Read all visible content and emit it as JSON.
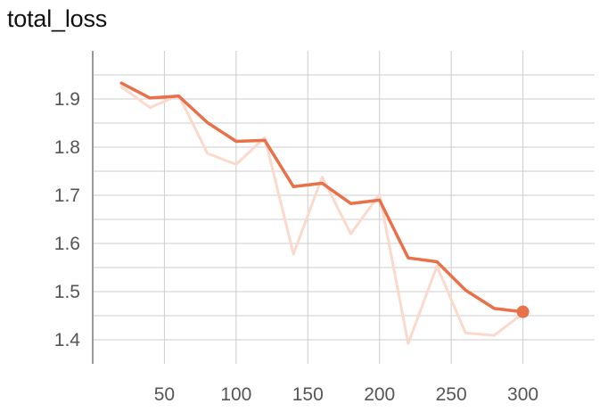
{
  "chart_data": {
    "type": "line",
    "title": "total_loss",
    "xlabel": "",
    "ylabel": "",
    "xlim": [
      0,
      350
    ],
    "ylim": [
      1.35,
      2.0
    ],
    "xticks": [
      50,
      100,
      150,
      200,
      250,
      300
    ],
    "yticks": [
      1.4,
      1.5,
      1.6,
      1.7,
      1.8,
      1.9
    ],
    "grid": true,
    "colors": {
      "smoothed": "#e8714a",
      "raw": "#fbd9cd",
      "grid": "#cccccc",
      "axis": "#999999"
    },
    "series": [
      {
        "role": "raw",
        "x": [
          20,
          40,
          60,
          80,
          100,
          120,
          140,
          160,
          180,
          200,
          220,
          240,
          260,
          280,
          300
        ],
        "y": [
          1.925,
          1.882,
          1.908,
          1.787,
          1.764,
          1.82,
          1.578,
          1.738,
          1.62,
          1.702,
          1.392,
          1.553,
          1.414,
          1.409,
          1.455
        ]
      },
      {
        "role": "smoothed",
        "x": [
          20,
          40,
          60,
          80,
          100,
          120,
          140,
          160,
          180,
          200,
          220,
          240,
          260,
          280,
          300
        ],
        "y": [
          1.933,
          1.902,
          1.906,
          1.851,
          1.812,
          1.814,
          1.718,
          1.725,
          1.683,
          1.69,
          1.57,
          1.562,
          1.503,
          1.465,
          1.458
        ]
      }
    ],
    "last_point_marker": true
  }
}
